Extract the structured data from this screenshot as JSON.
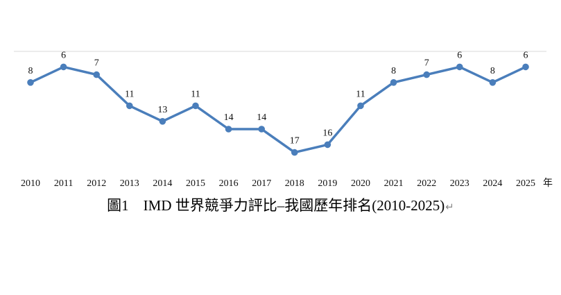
{
  "chart_data": {
    "type": "line",
    "title": "圖1　IMD 世界競爭力評比–我國歷年排名(2010-2025)",
    "x_unit": "年",
    "categories": [
      "2010",
      "2011",
      "2012",
      "2013",
      "2014",
      "2015",
      "2016",
      "2017",
      "2018",
      "2019",
      "2020",
      "2021",
      "2022",
      "2023",
      "2024",
      "2025"
    ],
    "values": [
      8,
      6,
      7,
      11,
      13,
      11,
      14,
      14,
      17,
      16,
      11,
      8,
      7,
      6,
      8,
      6
    ],
    "y_axis": "rank, inverted (smaller rank plotted higher), no tick labels shown",
    "ylim": [
      4,
      19
    ],
    "grid": false,
    "line_color": "#4a7ebb",
    "marker": "circle"
  },
  "caption": {
    "return_mark": "↵"
  }
}
